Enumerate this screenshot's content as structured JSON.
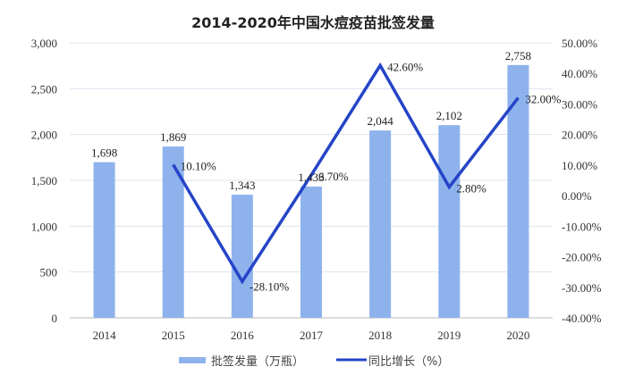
{
  "chart_data": {
    "type": "bar+line",
    "title": "2014-2020年中国水痘疫苗批签发量",
    "categories": [
      "2014",
      "2015",
      "2016",
      "2017",
      "2018",
      "2019",
      "2020"
    ],
    "series": [
      {
        "name": "批签发量（万瓶）",
        "type": "bar",
        "axis": "left",
        "color": "#8eb2ec",
        "values": [
          1698,
          1869,
          1343,
          1433,
          2044,
          2102,
          2758
        ],
        "labels": [
          "1,698",
          "1,869",
          "1,343",
          "1,433",
          "2,044",
          "2,102",
          "2,758"
        ]
      },
      {
        "name": "同比增长（%）",
        "type": "line",
        "axis": "right",
        "color": "#2444c8",
        "values": [
          null,
          10.1,
          -28.1,
          6.7,
          42.6,
          2.8,
          32.0
        ],
        "labels": [
          "",
          "10.10%",
          "-28.10%",
          "6.70%",
          "42.60%",
          "2.80%",
          "32.00%"
        ]
      }
    ],
    "left_axis": {
      "range": [
        0,
        3000
      ],
      "ticks": [
        "0",
        "500",
        "1,000",
        "1,500",
        "2,000",
        "2,500",
        "3,000"
      ]
    },
    "right_axis": {
      "range": [
        -40,
        50
      ],
      "ticks": [
        "-40.00%",
        "-30.00%",
        "-20.00%",
        "-10.00%",
        "0.00%",
        "10.00%",
        "20.00%",
        "30.00%",
        "40.00%",
        "50.00%"
      ]
    },
    "grid": "horizontal",
    "legend": "bottom"
  }
}
